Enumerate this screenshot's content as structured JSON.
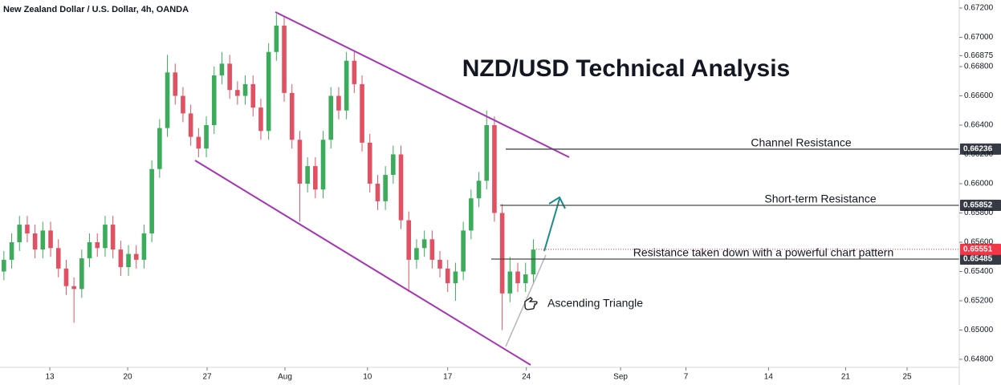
{
  "chart_data": {
    "type": "candlestick",
    "header": "New Zealand Dollar / U.S. Dollar, 4h, OANDA",
    "title": "NZD/USD Technical Analysis",
    "annotation": "Ascending Triangle",
    "up_color": "#3cab5c",
    "down_color": "#e05263",
    "x": [
      0.5,
      1.5,
      2.5,
      3.5,
      4.5,
      5.5,
      6.5,
      7.5,
      8.5,
      9.5,
      10.5,
      11.5,
      12.5,
      13.5,
      14.5,
      15.5,
      16.5,
      17.5,
      18.5,
      19.5,
      20.5,
      21.5,
      22.5,
      23.5,
      24.5,
      25.5,
      26.5,
      27.5,
      28.5,
      29.5,
      30.5,
      31.5,
      32.5,
      33.5,
      34.5,
      35.5,
      36.5,
      37.5,
      38.5,
      39.5,
      40.5,
      41.5,
      42.5,
      43.5,
      44.5,
      45.5,
      46.5,
      47.5,
      48.5,
      49.5,
      50.5,
      51.5,
      52.5,
      53.5,
      54.5,
      55.5,
      56.5,
      57.5,
      58.5,
      59.5,
      60.5,
      61.5,
      62.5,
      63.5,
      64.5,
      65.5,
      66.5,
      67.5,
      68.5
    ],
    "open": [
      0.654,
      0.6548,
      0.656,
      0.6572,
      0.6566,
      0.6555,
      0.6568,
      0.6556,
      0.6542,
      0.653,
      0.6528,
      0.6549,
      0.656,
      0.6556,
      0.6572,
      0.6555,
      0.6543,
      0.6552,
      0.6548,
      0.6566,
      0.661,
      0.6638,
      0.6676,
      0.666,
      0.6648,
      0.6632,
      0.6624,
      0.664,
      0.6674,
      0.6682,
      0.6664,
      0.666,
      0.6668,
      0.6652,
      0.6636,
      0.669,
      0.6708,
      0.6662,
      0.663,
      0.66,
      0.6612,
      0.6596,
      0.663,
      0.666,
      0.665,
      0.6684,
      0.6668,
      0.6628,
      0.66,
      0.6588,
      0.6606,
      0.662,
      0.6575,
      0.6548,
      0.6556,
      0.6562,
      0.6548,
      0.6542,
      0.6532,
      0.654,
      0.6568,
      0.659,
      0.6602,
      0.664,
      0.658,
      0.6525,
      0.654,
      0.6532,
      0.6538
    ],
    "high": [
      0.6554,
      0.6566,
      0.6578,
      0.6578,
      0.6572,
      0.6574,
      0.6574,
      0.6562,
      0.6548,
      0.6536,
      0.6555,
      0.6566,
      0.6566,
      0.6578,
      0.6578,
      0.6561,
      0.6558,
      0.6558,
      0.6572,
      0.6616,
      0.6644,
      0.6688,
      0.6682,
      0.6666,
      0.6654,
      0.6638,
      0.6646,
      0.668,
      0.669,
      0.6688,
      0.667,
      0.6674,
      0.6674,
      0.6658,
      0.6696,
      0.6716,
      0.6714,
      0.6668,
      0.6636,
      0.6618,
      0.6618,
      0.6636,
      0.6666,
      0.6666,
      0.669,
      0.669,
      0.6674,
      0.6634,
      0.6606,
      0.6612,
      0.6626,
      0.6626,
      0.6581,
      0.6562,
      0.6568,
      0.6568,
      0.6554,
      0.6548,
      0.6546,
      0.6574,
      0.6596,
      0.6608,
      0.665,
      0.6646,
      0.6586,
      0.655,
      0.6546,
      0.6546,
      0.6562
    ],
    "low": [
      0.6534,
      0.6542,
      0.6554,
      0.656,
      0.6549,
      0.6549,
      0.655,
      0.6536,
      0.6524,
      0.6505,
      0.6522,
      0.6543,
      0.655,
      0.655,
      0.6549,
      0.6537,
      0.6537,
      0.6542,
      0.6542,
      0.656,
      0.6604,
      0.6632,
      0.6654,
      0.6642,
      0.6626,
      0.6618,
      0.6618,
      0.6634,
      0.6668,
      0.6658,
      0.6654,
      0.6654,
      0.6646,
      0.663,
      0.663,
      0.6684,
      0.6656,
      0.6624,
      0.6574,
      0.6594,
      0.659,
      0.659,
      0.6624,
      0.6644,
      0.6644,
      0.6662,
      0.6622,
      0.6594,
      0.6582,
      0.6582,
      0.66,
      0.6569,
      0.6526,
      0.6542,
      0.655,
      0.6542,
      0.6536,
      0.6526,
      0.652,
      0.6534,
      0.6562,
      0.6584,
      0.6596,
      0.6574,
      0.65,
      0.6519,
      0.6526,
      0.6526,
      0.6532
    ],
    "close": [
      0.6548,
      0.656,
      0.6572,
      0.6566,
      0.6555,
      0.6568,
      0.6556,
      0.6542,
      0.653,
      0.6528,
      0.6549,
      0.656,
      0.6556,
      0.6572,
      0.6555,
      0.6543,
      0.6552,
      0.6548,
      0.6566,
      0.661,
      0.6638,
      0.6676,
      0.666,
      0.6648,
      0.6632,
      0.6624,
      0.664,
      0.6674,
      0.6682,
      0.6664,
      0.666,
      0.6668,
      0.6652,
      0.6636,
      0.669,
      0.6708,
      0.6662,
      0.663,
      0.66,
      0.6612,
      0.6596,
      0.663,
      0.666,
      0.665,
      0.6684,
      0.6668,
      0.6628,
      0.66,
      0.6588,
      0.6606,
      0.662,
      0.6575,
      0.6548,
      0.6556,
      0.6562,
      0.6548,
      0.6542,
      0.6532,
      0.654,
      0.6568,
      0.659,
      0.6602,
      0.664,
      0.658,
      0.6525,
      0.654,
      0.6532,
      0.6538,
      0.6555
    ],
    "xlim": [
      0,
      123.2
    ],
    "xticks": [
      {
        "value": 6.4,
        "label": "13"
      },
      {
        "value": 16.4,
        "label": "20"
      },
      {
        "value": 26.6,
        "label": "27"
      },
      {
        "value": 36.6,
        "label": "Aug"
      },
      {
        "value": 47.2,
        "label": "10"
      },
      {
        "value": 57.5,
        "label": "17"
      },
      {
        "value": 67.6,
        "label": "24"
      },
      {
        "value": 79.7,
        "label": "Sep"
      },
      {
        "value": 88.1,
        "label": "7"
      },
      {
        "value": 98.7,
        "label": "14"
      },
      {
        "value": 108.6,
        "label": "21"
      },
      {
        "value": 116.5,
        "label": "25"
      }
    ],
    "ylim": [
      0.64745,
      0.67255
    ],
    "yticks": [
      {
        "value": 0.672,
        "label": "0.67200"
      },
      {
        "value": 0.67,
        "label": "0.67000"
      },
      {
        "value": 0.66875,
        "label": "0.66875"
      },
      {
        "value": 0.668,
        "label": "0.66800"
      },
      {
        "value": 0.666,
        "label": "0.66600"
      },
      {
        "value": 0.664,
        "label": "0.66400"
      },
      {
        "value": 0.662,
        "label": "0.66200"
      },
      {
        "value": 0.66,
        "label": "0.66000"
      },
      {
        "value": 0.658,
        "label": "0.65800"
      },
      {
        "value": 0.656,
        "label": "0.65600"
      },
      {
        "value": 0.654,
        "label": "0.65400"
      },
      {
        "value": 0.652,
        "label": "0.65200"
      },
      {
        "value": 0.65,
        "label": "0.65000"
      },
      {
        "value": 0.648,
        "label": "0.64800"
      }
    ],
    "levels": [
      {
        "name": "Channel Resistance",
        "value": 0.66236,
        "value_label": "0.66236"
      },
      {
        "name": "Short-term Resistance",
        "value": 0.65852,
        "value_label": "0.65852"
      },
      {
        "name": "Resistance taken down with a powerful chart pattern",
        "value": 0.65485,
        "value_label": "0.65485"
      }
    ],
    "last_price": {
      "value": 0.65551,
      "label": "0.65551"
    }
  }
}
